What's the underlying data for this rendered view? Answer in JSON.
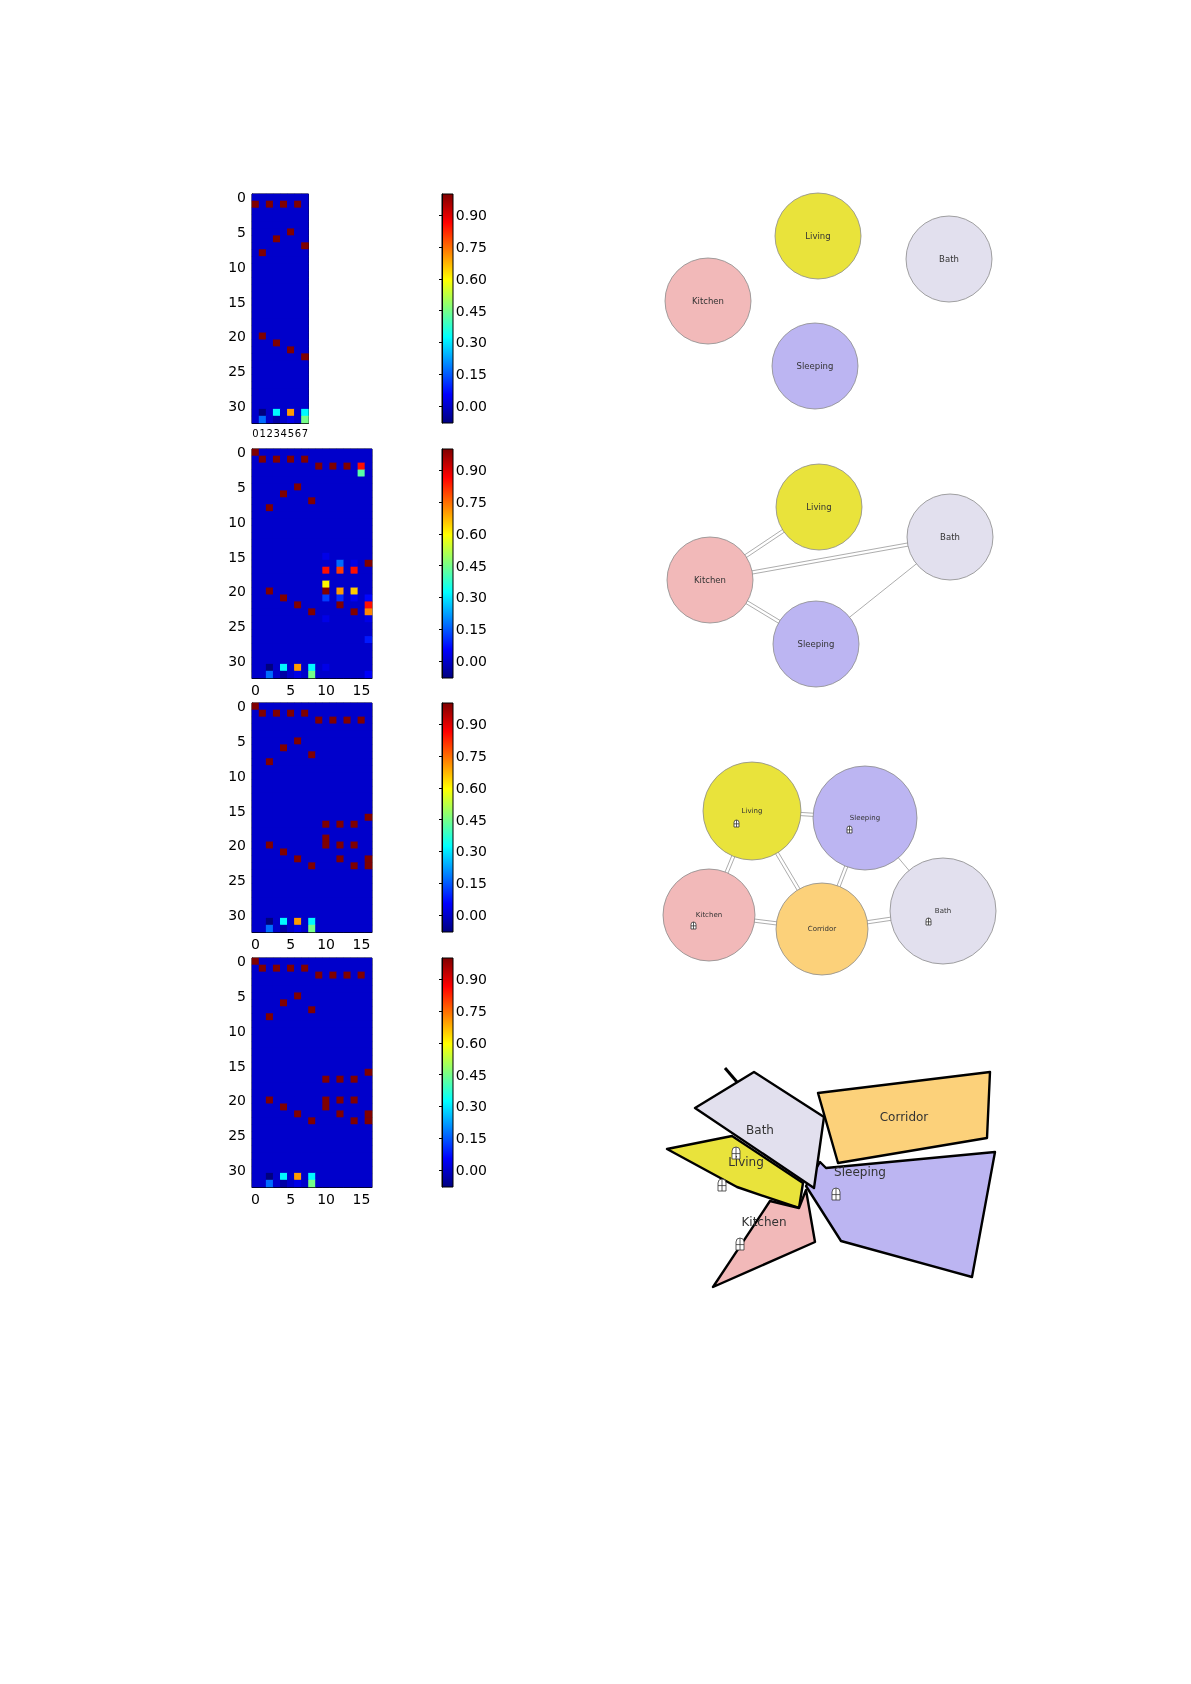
{
  "chart_data": [
    {
      "type": "heatmap",
      "categories": [
        "0",
        "1",
        "2",
        "3",
        "4",
        "5",
        "6",
        "7"
      ],
      "y_categories": [
        "0",
        null,
        null,
        null,
        null,
        "5",
        null,
        null,
        null,
        null,
        "10",
        null,
        null,
        null,
        null,
        "15",
        null,
        null,
        null,
        null,
        "20",
        null,
        null,
        null,
        null,
        "25",
        null,
        null,
        null,
        null,
        "30",
        null,
        null
      ],
      "cells": [
        [
          0,
          0,
          0,
          0,
          0,
          0,
          0,
          0
        ],
        [
          1,
          0,
          1,
          0,
          1,
          0,
          1,
          0
        ],
        [
          0,
          0,
          0,
          0,
          0,
          0,
          0,
          0
        ],
        [
          0,
          0,
          0,
          0,
          0,
          0,
          0,
          0
        ],
        [
          0,
          0,
          0,
          0,
          0,
          0,
          0,
          0
        ],
        [
          0,
          0,
          0,
          0,
          0,
          1,
          0,
          0
        ],
        [
          0,
          0,
          0,
          1,
          0,
          0,
          0,
          0
        ],
        [
          0,
          0,
          0,
          0,
          0,
          0,
          0,
          1
        ],
        [
          0,
          1,
          0,
          0,
          0,
          0,
          0,
          0
        ],
        [
          0,
          0,
          0,
          0,
          0,
          0,
          0,
          0
        ],
        [
          0,
          0,
          0,
          0,
          0,
          0,
          0,
          0
        ],
        [
          0,
          0,
          0,
          0,
          0,
          0,
          0,
          0
        ],
        [
          0,
          0,
          0,
          0,
          0,
          0,
          0,
          0
        ],
        [
          0,
          0,
          0,
          0,
          0,
          0,
          0,
          0
        ],
        [
          0,
          0,
          0,
          0,
          0,
          0,
          0,
          0
        ],
        [
          0,
          0,
          0,
          0,
          0,
          0,
          0,
          0
        ],
        [
          0,
          0,
          0,
          0,
          0,
          0,
          0,
          0
        ],
        [
          0,
          0,
          0,
          0,
          0,
          0,
          0,
          0
        ],
        [
          0,
          0,
          0,
          0,
          0,
          0,
          0,
          0
        ],
        [
          0,
          0,
          0,
          0,
          0,
          0,
          0,
          0
        ],
        [
          0,
          1,
          0,
          0,
          0,
          0,
          0,
          0
        ],
        [
          0,
          0,
          0,
          1,
          0,
          0,
          0,
          0
        ],
        [
          0,
          0,
          0,
          0,
          0,
          1,
          0,
          0
        ],
        [
          0,
          0,
          0,
          0,
          0,
          0,
          0,
          1
        ],
        [
          0,
          0,
          0,
          0,
          0,
          0,
          0,
          0
        ],
        [
          0,
          0,
          0,
          0,
          0,
          0,
          0,
          0
        ],
        [
          0,
          0,
          0,
          0,
          0,
          0,
          0,
          0
        ],
        [
          0,
          0,
          0,
          0,
          0,
          0,
          0,
          0
        ],
        [
          0,
          0,
          0,
          0,
          0,
          0,
          0,
          0
        ],
        [
          0,
          0,
          0,
          0,
          0,
          0,
          0,
          0
        ],
        [
          0,
          0,
          0,
          0,
          0,
          0,
          0,
          0
        ],
        [
          0,
          -0.08,
          0,
          0.32,
          0,
          0.7,
          0,
          0.32
        ],
        [
          0,
          0.17,
          0,
          -0.04,
          0,
          0.03,
          0,
          0.45
        ]
      ],
      "clim": [
        -0.08,
        1
      ],
      "cticks": [
        {
          "value": 0,
          "label": "0.00"
        },
        {
          "value": 0.15,
          "label": "0.15"
        },
        {
          "value": 0.3,
          "label": "0.30"
        },
        {
          "value": 0.45,
          "label": "0.45"
        },
        {
          "value": 0.6,
          "label": "0.60"
        },
        {
          "value": 0.75,
          "label": "0.75"
        },
        {
          "value": 0.9,
          "label": "0.90"
        }
      ]
    },
    {
      "type": "other",
      "categories": [
        "Living",
        "Bath",
        "Kitchen",
        "Sleeping"
      ],
      "colors": [
        "#e9e33b",
        "#e2e0ee",
        "#f2b9b9",
        "#bcb5f2"
      ]
    },
    {
      "type": "heatmap",
      "categories": [
        "0",
        null,
        null,
        null,
        null,
        "5",
        null,
        null,
        null,
        null,
        "10",
        null,
        null,
        null,
        null,
        "15",
        null
      ],
      "y_categories": [
        "0",
        null,
        null,
        null,
        null,
        "5",
        null,
        null,
        null,
        null,
        "10",
        null,
        null,
        null,
        null,
        "15",
        null,
        null,
        null,
        null,
        "20",
        null,
        null,
        null,
        null,
        "25",
        null,
        null,
        null,
        null,
        "30",
        null,
        null
      ],
      "cells": [
        [
          1,
          0,
          0,
          0,
          0,
          0,
          0,
          0,
          0,
          0,
          0,
          0,
          0,
          0,
          0,
          0,
          0
        ],
        [
          0,
          1,
          0,
          1,
          0,
          1,
          0,
          1,
          0,
          0,
          0,
          0,
          0,
          0,
          0,
          0,
          0
        ],
        [
          0,
          0,
          0,
          0,
          0,
          0,
          0,
          0,
          0,
          1,
          0,
          1,
          0,
          1,
          0,
          0.85,
          0
        ],
        [
          0,
          0,
          0,
          0,
          0,
          0,
          0,
          0,
          0,
          0,
          0,
          0,
          0,
          0,
          0,
          0.42,
          0
        ],
        [
          0,
          0,
          0,
          0,
          0,
          0,
          0,
          0,
          0,
          0,
          0,
          0,
          0,
          0,
          0,
          0,
          0
        ],
        [
          0,
          0,
          0,
          0,
          0,
          0,
          1,
          0,
          0,
          0,
          0,
          0,
          0,
          0,
          0,
          0,
          0
        ],
        [
          0,
          0,
          0,
          0,
          1,
          0,
          0,
          0,
          0,
          0,
          0,
          0,
          0,
          0,
          0,
          0,
          0
        ],
        [
          0,
          0,
          0,
          0,
          0,
          0,
          0,
          0,
          1,
          0,
          0,
          0,
          0,
          0,
          0,
          0,
          0
        ],
        [
          0,
          0,
          1,
          0,
          0,
          0,
          0,
          0,
          0,
          0,
          0,
          0,
          0,
          0,
          0,
          0,
          0
        ],
        [
          0,
          0,
          0,
          0,
          0,
          0,
          0,
          0,
          0,
          0,
          0,
          0,
          0,
          0,
          0,
          0,
          0
        ],
        [
          0,
          0,
          0,
          0,
          0,
          0,
          0,
          0,
          0,
          0,
          0,
          0,
          0,
          0,
          0,
          0,
          0
        ],
        [
          0,
          0,
          0,
          0,
          0,
          0,
          0,
          0,
          0,
          0,
          0,
          0,
          0,
          0,
          0,
          0,
          0
        ],
        [
          0,
          0,
          0,
          0,
          0,
          0,
          0,
          0,
          0,
          0,
          0,
          0,
          0,
          0,
          0,
          0,
          0
        ],
        [
          0,
          0,
          0,
          0,
          0,
          0,
          0,
          0,
          0,
          0,
          0,
          0,
          0,
          0,
          0,
          0,
          0
        ],
        [
          0,
          0,
          0,
          0,
          0,
          0,
          0,
          0,
          0,
          0,
          0,
          0,
          0,
          0,
          0,
          0,
          0
        ],
        [
          0,
          0,
          0,
          0,
          0,
          0,
          0,
          0,
          0,
          0,
          0.03,
          0,
          0,
          0,
          0,
          0,
          0
        ],
        [
          0,
          0,
          0,
          0,
          0,
          0,
          0,
          0,
          0,
          0,
          0,
          0,
          0.17,
          0,
          0.03,
          0,
          1
        ],
        [
          0,
          0,
          0,
          0,
          0,
          0,
          0,
          0,
          0,
          0,
          0.85,
          0,
          0.8,
          0,
          0.85,
          0,
          0
        ],
        [
          0,
          0,
          0,
          0,
          0,
          0,
          0,
          0,
          0,
          0,
          0,
          0,
          0,
          0,
          0,
          0,
          0
        ],
        [
          0,
          0,
          0,
          0,
          0,
          0,
          0,
          0,
          0,
          0,
          0.6,
          0,
          0,
          0,
          0,
          0,
          0
        ],
        [
          0,
          0,
          1,
          0,
          0,
          0,
          0,
          0,
          0,
          0,
          1,
          0,
          0.7,
          0,
          0.65,
          0,
          0
        ],
        [
          0,
          0,
          0,
          0,
          1,
          0,
          0,
          0,
          0,
          0,
          0.12,
          0,
          0.1,
          0,
          0.04,
          0,
          0.06
        ],
        [
          0,
          0,
          0,
          0,
          0,
          0,
          1,
          0,
          0,
          0,
          0,
          0,
          1,
          0,
          0,
          0,
          0.85
        ],
        [
          0,
          0,
          0,
          0,
          0,
          0,
          0,
          0,
          1,
          0,
          0,
          0,
          0,
          0,
          1,
          0,
          0.72
        ],
        [
          0,
          0,
          0,
          0,
          0,
          0,
          0,
          0,
          0,
          0,
          0.03,
          0,
          0,
          0,
          0,
          0,
          0.03
        ],
        [
          0,
          0,
          0,
          0,
          0,
          0,
          0,
          0,
          0,
          0,
          0,
          0,
          0,
          0,
          0,
          0,
          0
        ],
        [
          0,
          0,
          0,
          0,
          0,
          0,
          0,
          0,
          0,
          0,
          0,
          0,
          0,
          0,
          0,
          0,
          0
        ],
        [
          0,
          0,
          0,
          0,
          0,
          0,
          0,
          0,
          0,
          0,
          0,
          0,
          0,
          0,
          0,
          0,
          0.08
        ],
        [
          0,
          0,
          0,
          0,
          0,
          0,
          0,
          0,
          0,
          0,
          0,
          0,
          0,
          0,
          0,
          0,
          0
        ],
        [
          0,
          0,
          0,
          0,
          0,
          0,
          0,
          0,
          0,
          0,
          0,
          0,
          0,
          0,
          0,
          0,
          0
        ],
        [
          0,
          0,
          0,
          0,
          0,
          0,
          0,
          0,
          0,
          0,
          0,
          0,
          0,
          0,
          0,
          0,
          0
        ],
        [
          0,
          0,
          -0.08,
          0,
          0.32,
          0,
          0.7,
          0,
          0.32,
          0,
          0.03,
          0,
          0,
          0,
          0,
          0,
          0
        ],
        [
          0,
          0,
          0.17,
          0,
          -0.04,
          0,
          0.03,
          0,
          0.45,
          0,
          0,
          0,
          0,
          0,
          0,
          0,
          0.05
        ]
      ],
      "clim": [
        -0.08,
        1
      ],
      "cticks": [
        {
          "value": 0,
          "label": "0.00"
        },
        {
          "value": 0.15,
          "label": "0.15"
        },
        {
          "value": 0.3,
          "label": "0.30"
        },
        {
          "value": 0.45,
          "label": "0.45"
        },
        {
          "value": 0.6,
          "label": "0.60"
        },
        {
          "value": 0.75,
          "label": "0.75"
        },
        {
          "value": 0.9,
          "label": "0.90"
        }
      ]
    },
    {
      "type": "other",
      "categories": [
        "Living",
        "Bath",
        "Kitchen",
        "Sleeping"
      ],
      "colors": [
        "#e9e33b",
        "#e2e0ee",
        "#f2b9b9",
        "#bcb5f2"
      ]
    },
    {
      "type": "heatmap",
      "categories": [
        "0",
        null,
        null,
        null,
        null,
        "5",
        null,
        null,
        null,
        null,
        "10",
        null,
        null,
        null,
        null,
        "15",
        null
      ],
      "y_categories": [
        "0",
        null,
        null,
        null,
        null,
        "5",
        null,
        null,
        null,
        null,
        "10",
        null,
        null,
        null,
        null,
        "15",
        null,
        null,
        null,
        null,
        "20",
        null,
        null,
        null,
        null,
        "25",
        null,
        null,
        null,
        null,
        "30",
        null,
        null
      ],
      "cells": [
        [
          1,
          0,
          0,
          0,
          0,
          0,
          0,
          0,
          0,
          0,
          0,
          0,
          0,
          0,
          0,
          0,
          0
        ],
        [
          0,
          1,
          0,
          1,
          0,
          1,
          0,
          1,
          0,
          0,
          0,
          0,
          0,
          0,
          0,
          0,
          0
        ],
        [
          0,
          0,
          0,
          0,
          0,
          0,
          0,
          0,
          0,
          1,
          0,
          1,
          0,
          1,
          0,
          1,
          0
        ],
        [
          0,
          0,
          0,
          0,
          0,
          0,
          0,
          0,
          0,
          0,
          0,
          0,
          0,
          0,
          0,
          0,
          0
        ],
        [
          0,
          0,
          0,
          0,
          0,
          0,
          0,
          0,
          0,
          0,
          0,
          0,
          0,
          0,
          0,
          0,
          0
        ],
        [
          0,
          0,
          0,
          0,
          0,
          0,
          1,
          0,
          0,
          0,
          0,
          0,
          0,
          0,
          0,
          0,
          0
        ],
        [
          0,
          0,
          0,
          0,
          1,
          0,
          0,
          0,
          0,
          0,
          0,
          0,
          0,
          0,
          0,
          0,
          0
        ],
        [
          0,
          0,
          0,
          0,
          0,
          0,
          0,
          0,
          1,
          0,
          0,
          0,
          0,
          0,
          0,
          0,
          0
        ],
        [
          0,
          0,
          1,
          0,
          0,
          0,
          0,
          0,
          0,
          0,
          0,
          0,
          0,
          0,
          0,
          0,
          0
        ],
        [
          0,
          0,
          0,
          0,
          0,
          0,
          0,
          0,
          0,
          0,
          0,
          0,
          0,
          0,
          0,
          0,
          0
        ],
        [
          0,
          0,
          0,
          0,
          0,
          0,
          0,
          0,
          0,
          0,
          0,
          0,
          0,
          0,
          0,
          0,
          0
        ],
        [
          0,
          0,
          0,
          0,
          0,
          0,
          0,
          0,
          0,
          0,
          0,
          0,
          0,
          0,
          0,
          0,
          0
        ],
        [
          0,
          0,
          0,
          0,
          0,
          0,
          0,
          0,
          0,
          0,
          0,
          0,
          0,
          0,
          0,
          0,
          0
        ],
        [
          0,
          0,
          0,
          0,
          0,
          0,
          0,
          0,
          0,
          0,
          0,
          0,
          0,
          0,
          0,
          0,
          0
        ],
        [
          0,
          0,
          0,
          0,
          0,
          0,
          0,
          0,
          0,
          0,
          0,
          0,
          0,
          0,
          0,
          0,
          0
        ],
        [
          0,
          0,
          0,
          0,
          0,
          0,
          0,
          0,
          0,
          0,
          0,
          0,
          0,
          0,
          0,
          0,
          0
        ],
        [
          0,
          0,
          0,
          0,
          0,
          0,
          0,
          0,
          0,
          0,
          0,
          0,
          0,
          0,
          0,
          0,
          1
        ],
        [
          0,
          0,
          0,
          0,
          0,
          0,
          0,
          0,
          0,
          0,
          1,
          0,
          1,
          0,
          1,
          0,
          0
        ],
        [
          0,
          0,
          0,
          0,
          0,
          0,
          0,
          0,
          0,
          0,
          0,
          0,
          0,
          0,
          0,
          0,
          0
        ],
        [
          0,
          0,
          0,
          0,
          0,
          0,
          0,
          0,
          0,
          0,
          1,
          0,
          0,
          0,
          0,
          0,
          0
        ],
        [
          0,
          0,
          1,
          0,
          0,
          0,
          0,
          0,
          0,
          0,
          1,
          0,
          1,
          0,
          1,
          0,
          0
        ],
        [
          0,
          0,
          0,
          0,
          1,
          0,
          0,
          0,
          0,
          0,
          0,
          0,
          0,
          0,
          0,
          0,
          0
        ],
        [
          0,
          0,
          0,
          0,
          0,
          0,
          1,
          0,
          0,
          0,
          0,
          0,
          1,
          0,
          0,
          0,
          1
        ],
        [
          0,
          0,
          0,
          0,
          0,
          0,
          0,
          0,
          1,
          0,
          0,
          0,
          0,
          0,
          1,
          0,
          1
        ],
        [
          0,
          0,
          0,
          0,
          0,
          0,
          0,
          0,
          0,
          0,
          0,
          0,
          0,
          0,
          0,
          0,
          0
        ],
        [
          0,
          0,
          0,
          0,
          0,
          0,
          0,
          0,
          0,
          0,
          0,
          0,
          0,
          0,
          0,
          0,
          0
        ],
        [
          0,
          0,
          0,
          0,
          0,
          0,
          0,
          0,
          0,
          0,
          0,
          0,
          0,
          0,
          0,
          0,
          0
        ],
        [
          0,
          0,
          0,
          0,
          0,
          0,
          0,
          0,
          0,
          0,
          0,
          0,
          0,
          0,
          0,
          0,
          0
        ],
        [
          0,
          0,
          0,
          0,
          0,
          0,
          0,
          0,
          0,
          0,
          0,
          0,
          0,
          0,
          0,
          0,
          0
        ],
        [
          0,
          0,
          0,
          0,
          0,
          0,
          0,
          0,
          0,
          0,
          0,
          0,
          0,
          0,
          0,
          0,
          0
        ],
        [
          0,
          0,
          0,
          0,
          0,
          0,
          0,
          0,
          0,
          0,
          0,
          0,
          0,
          0,
          0,
          0,
          0
        ],
        [
          0,
          0,
          -0.08,
          0,
          0.32,
          0,
          0.7,
          0,
          0.32,
          0,
          0,
          0,
          0,
          0,
          0,
          0,
          0
        ],
        [
          0,
          0,
          0.17,
          0,
          -0.04,
          0,
          0.03,
          0,
          0.45,
          0,
          0,
          0,
          0,
          0,
          0,
          0,
          0
        ]
      ],
      "clim": [
        -0.08,
        1
      ],
      "cticks": [
        {
          "value": 0,
          "label": "0.00"
        },
        {
          "value": 0.15,
          "label": "0.15"
        },
        {
          "value": 0.3,
          "label": "0.30"
        },
        {
          "value": 0.45,
          "label": "0.45"
        },
        {
          "value": 0.6,
          "label": "0.60"
        },
        {
          "value": 0.75,
          "label": "0.75"
        },
        {
          "value": 0.9,
          "label": "0.90"
        }
      ]
    },
    {
      "type": "other",
      "categories": [
        "Living",
        "Sleeping",
        "Kitchen",
        "Corridor",
        "Bath"
      ],
      "colors": [
        "#e9e33b",
        "#bcb5f2",
        "#f2b9b9",
        "#fcd17a",
        "#e2e0ee"
      ]
    },
    {
      "type": "heatmap",
      "categories": [
        "0",
        null,
        null,
        null,
        null,
        "5",
        null,
        null,
        null,
        null,
        "10",
        null,
        null,
        null,
        null,
        "15",
        null
      ],
      "y_categories": [
        "0",
        null,
        null,
        null,
        null,
        "5",
        null,
        null,
        null,
        null,
        "10",
        null,
        null,
        null,
        null,
        "15",
        null,
        null,
        null,
        null,
        "20",
        null,
        null,
        null,
        null,
        "25",
        null,
        null,
        null,
        null,
        "30",
        null,
        null
      ],
      "cells": [
        [
          1,
          0,
          0,
          0,
          0,
          0,
          0,
          0,
          0,
          0,
          0,
          0,
          0,
          0,
          0,
          0,
          0
        ],
        [
          0,
          1,
          0,
          1,
          0,
          1,
          0,
          1,
          0,
          0,
          0,
          0,
          0,
          0,
          0,
          0,
          0
        ],
        [
          0,
          0,
          0,
          0,
          0,
          0,
          0,
          0,
          0,
          1,
          0,
          1,
          0,
          1,
          0,
          1,
          0
        ],
        [
          0,
          0,
          0,
          0,
          0,
          0,
          0,
          0,
          0,
          0,
          0,
          0,
          0,
          0,
          0,
          0,
          0
        ],
        [
          0,
          0,
          0,
          0,
          0,
          0,
          0,
          0,
          0,
          0,
          0,
          0,
          0,
          0,
          0,
          0,
          0
        ],
        [
          0,
          0,
          0,
          0,
          0,
          0,
          1,
          0,
          0,
          0,
          0,
          0,
          0,
          0,
          0,
          0,
          0
        ],
        [
          0,
          0,
          0,
          0,
          1,
          0,
          0,
          0,
          0,
          0,
          0,
          0,
          0,
          0,
          0,
          0,
          0
        ],
        [
          0,
          0,
          0,
          0,
          0,
          0,
          0,
          0,
          1,
          0,
          0,
          0,
          0,
          0,
          0,
          0,
          0
        ],
        [
          0,
          0,
          1,
          0,
          0,
          0,
          0,
          0,
          0,
          0,
          0,
          0,
          0,
          0,
          0,
          0,
          0
        ],
        [
          0,
          0,
          0,
          0,
          0,
          0,
          0,
          0,
          0,
          0,
          0,
          0,
          0,
          0,
          0,
          0,
          0
        ],
        [
          0,
          0,
          0,
          0,
          0,
          0,
          0,
          0,
          0,
          0,
          0,
          0,
          0,
          0,
          0,
          0,
          0
        ],
        [
          0,
          0,
          0,
          0,
          0,
          0,
          0,
          0,
          0,
          0,
          0,
          0,
          0,
          0,
          0,
          0,
          0
        ],
        [
          0,
          0,
          0,
          0,
          0,
          0,
          0,
          0,
          0,
          0,
          0,
          0,
          0,
          0,
          0,
          0,
          0
        ],
        [
          0,
          0,
          0,
          0,
          0,
          0,
          0,
          0,
          0,
          0,
          0,
          0,
          0,
          0,
          0,
          0,
          0
        ],
        [
          0,
          0,
          0,
          0,
          0,
          0,
          0,
          0,
          0,
          0,
          0,
          0,
          0,
          0,
          0,
          0,
          0
        ],
        [
          0,
          0,
          0,
          0,
          0,
          0,
          0,
          0,
          0,
          0,
          0,
          0,
          0,
          0,
          0,
          0,
          0
        ],
        [
          0,
          0,
          0,
          0,
          0,
          0,
          0,
          0,
          0,
          0,
          0,
          0,
          0,
          0,
          0,
          0,
          1
        ],
        [
          0,
          0,
          0,
          0,
          0,
          0,
          0,
          0,
          0,
          0,
          1,
          0,
          1,
          0,
          1,
          0,
          0
        ],
        [
          0,
          0,
          0,
          0,
          0,
          0,
          0,
          0,
          0,
          0,
          0,
          0,
          0,
          0,
          0,
          0,
          0
        ],
        [
          0,
          0,
          0,
          0,
          0,
          0,
          0,
          0,
          0,
          0,
          0,
          0,
          0,
          0,
          0,
          0,
          0
        ],
        [
          0,
          0,
          1,
          0,
          0,
          0,
          0,
          0,
          0,
          0,
          1,
          0,
          1,
          0,
          1,
          0,
          0
        ],
        [
          0,
          0,
          0,
          0,
          1,
          0,
          0,
          0,
          0,
          0,
          1,
          0,
          0,
          0,
          0,
          0,
          0
        ],
        [
          0,
          0,
          0,
          0,
          0,
          0,
          1,
          0,
          0,
          0,
          0,
          0,
          1,
          0,
          0,
          0,
          1
        ],
        [
          0,
          0,
          0,
          0,
          0,
          0,
          0,
          0,
          1,
          0,
          0,
          0,
          0,
          0,
          1,
          0,
          1
        ],
        [
          0,
          0,
          0,
          0,
          0,
          0,
          0,
          0,
          0,
          0,
          0,
          0,
          0,
          0,
          0,
          0,
          0
        ],
        [
          0,
          0,
          0,
          0,
          0,
          0,
          0,
          0,
          0,
          0,
          0,
          0,
          0,
          0,
          0,
          0,
          0
        ],
        [
          0,
          0,
          0,
          0,
          0,
          0,
          0,
          0,
          0,
          0,
          0,
          0,
          0,
          0,
          0,
          0,
          0
        ],
        [
          0,
          0,
          0,
          0,
          0,
          0,
          0,
          0,
          0,
          0,
          0,
          0,
          0,
          0,
          0,
          0,
          0
        ],
        [
          0,
          0,
          0,
          0,
          0,
          0,
          0,
          0,
          0,
          0,
          0,
          0,
          0,
          0,
          0,
          0,
          0
        ],
        [
          0,
          0,
          0,
          0,
          0,
          0,
          0,
          0,
          0,
          0,
          0,
          0,
          0,
          0,
          0,
          0,
          0
        ],
        [
          0,
          0,
          0,
          0,
          0,
          0,
          0,
          0,
          0,
          0,
          0,
          0,
          0,
          0,
          0,
          0,
          0
        ],
        [
          0,
          0,
          -0.08,
          0,
          0.32,
          0,
          0.7,
          0,
          0.32,
          0,
          0,
          0,
          0,
          0,
          0,
          0,
          0
        ],
        [
          0,
          0,
          0.17,
          0,
          -0.04,
          0,
          0.03,
          0,
          0.45,
          0,
          0,
          0,
          0,
          0,
          0,
          0,
          0
        ]
      ],
      "clim": [
        -0.08,
        1
      ],
      "cticks": [
        {
          "value": 0,
          "label": "0.00"
        },
        {
          "value": 0.15,
          "label": "0.15"
        },
        {
          "value": 0.3,
          "label": "0.30"
        },
        {
          "value": 0.45,
          "label": "0.45"
        },
        {
          "value": 0.6,
          "label": "0.60"
        },
        {
          "value": 0.75,
          "label": "0.75"
        },
        {
          "value": 0.9,
          "label": "0.90"
        }
      ]
    },
    {
      "type": "other",
      "categories": [
        "Bath",
        "Corridor",
        "Living",
        "Sleeping",
        "Kitchen"
      ],
      "colors": [
        "#e2e0ee",
        "#fcd17a",
        "#e9e33b",
        "#bcb5f2",
        "#f2b9b9"
      ]
    }
  ]
}
